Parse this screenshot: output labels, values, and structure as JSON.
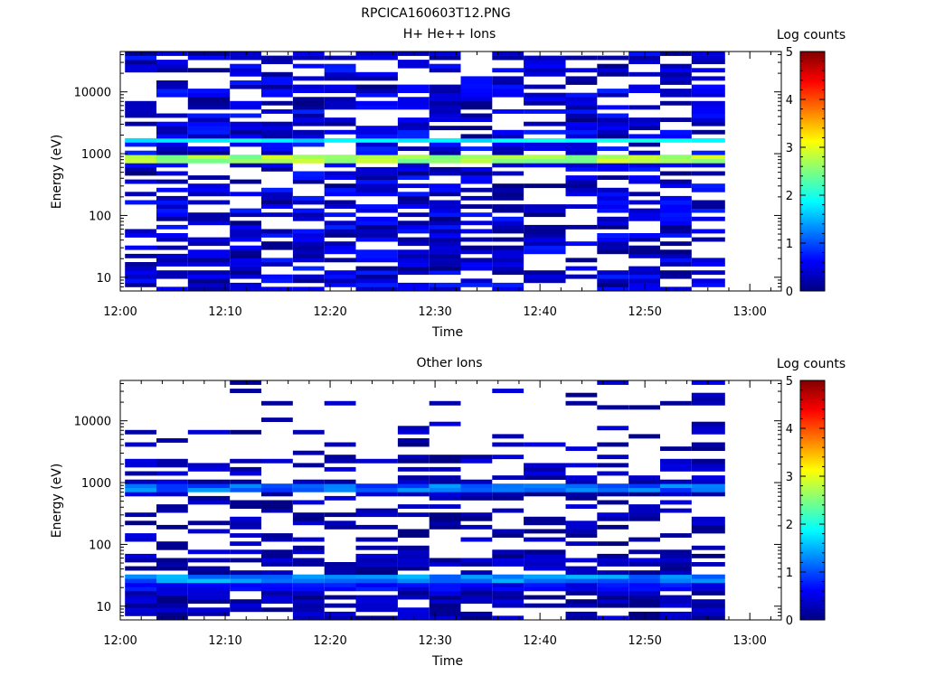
{
  "figure": {
    "title": "RPCICA160603T12.PNG"
  },
  "colormap": [
    "#00007f",
    "#0000ff",
    "#007fff",
    "#00ffff",
    "#7fff7f",
    "#ffff00",
    "#ff7f00",
    "#ff0000",
    "#7f0000"
  ],
  "chart_data": [
    {
      "type": "heatmap",
      "title": "H+ He++ Ions",
      "xlabel": "Time",
      "ylabel": "Energy (eV)",
      "x_tick_labels": [
        "12:00",
        "12:10",
        "12:20",
        "12:30",
        "12:40",
        "12:50",
        "13:00"
      ],
      "x_range": [
        "12:00",
        "13:03"
      ],
      "y_tick_labels": [
        "10",
        "100",
        "1000",
        "10000"
      ],
      "y_range": [
        6,
        45000
      ],
      "y_scale": "log",
      "colorbar": {
        "label": "Log counts",
        "tick_labels": [
          "0",
          "1",
          "2",
          "3",
          "4",
          "5"
        ],
        "range": [
          0,
          5
        ]
      },
      "time_bins": [
        "12:02",
        "12:05",
        "12:08",
        "12:12",
        "12:15",
        "12:18",
        "12:21",
        "12:24",
        "12:28",
        "12:31",
        "12:34",
        "12:37",
        "12:40",
        "12:44",
        "12:47",
        "12:50",
        "12:53",
        "12:56"
      ],
      "energy_features": [
        {
          "energy_range": [
            700,
            950
          ],
          "log_counts": [
            2.4,
            3.0
          ]
        },
        {
          "energy_range": [
            1500,
            1900
          ],
          "log_counts": [
            1.6,
            2.0
          ]
        },
        {
          "energy_range": [
            6,
            45000
          ],
          "log_counts": [
            0,
            0.8
          ]
        }
      ]
    },
    {
      "type": "heatmap",
      "title": "Other Ions",
      "xlabel": "Time",
      "ylabel": "Energy (eV)",
      "x_tick_labels": [
        "12:00",
        "12:10",
        "12:20",
        "12:30",
        "12:40",
        "12:50",
        "13:00"
      ],
      "x_range": [
        "12:00",
        "13:03"
      ],
      "y_tick_labels": [
        "10",
        "100",
        "1000",
        "10000"
      ],
      "y_range": [
        6,
        45000
      ],
      "y_scale": "log",
      "colorbar": {
        "label": "Log counts",
        "tick_labels": [
          "0",
          "1",
          "2",
          "3",
          "4",
          "5"
        ],
        "range": [
          0,
          5
        ]
      },
      "time_bins": [
        "12:02",
        "12:05",
        "12:08",
        "12:12",
        "12:15",
        "12:18",
        "12:21",
        "12:24",
        "12:28",
        "12:31",
        "12:34",
        "12:37",
        "12:40",
        "12:44",
        "12:47",
        "12:50",
        "12:53",
        "12:56"
      ],
      "energy_features": [
        {
          "energy_range": [
            750,
            900
          ],
          "log_counts": [
            0.8,
            1.4
          ]
        },
        {
          "energy_range": [
            24,
            33
          ],
          "log_counts": [
            0.9,
            1.6
          ]
        },
        {
          "energy_range": [
            17,
            24
          ],
          "log_counts": [
            0.4,
            0.8
          ]
        },
        {
          "energy_range": [
            6,
            45000
          ],
          "log_counts": [
            0,
            0.5
          ]
        }
      ]
    }
  ]
}
